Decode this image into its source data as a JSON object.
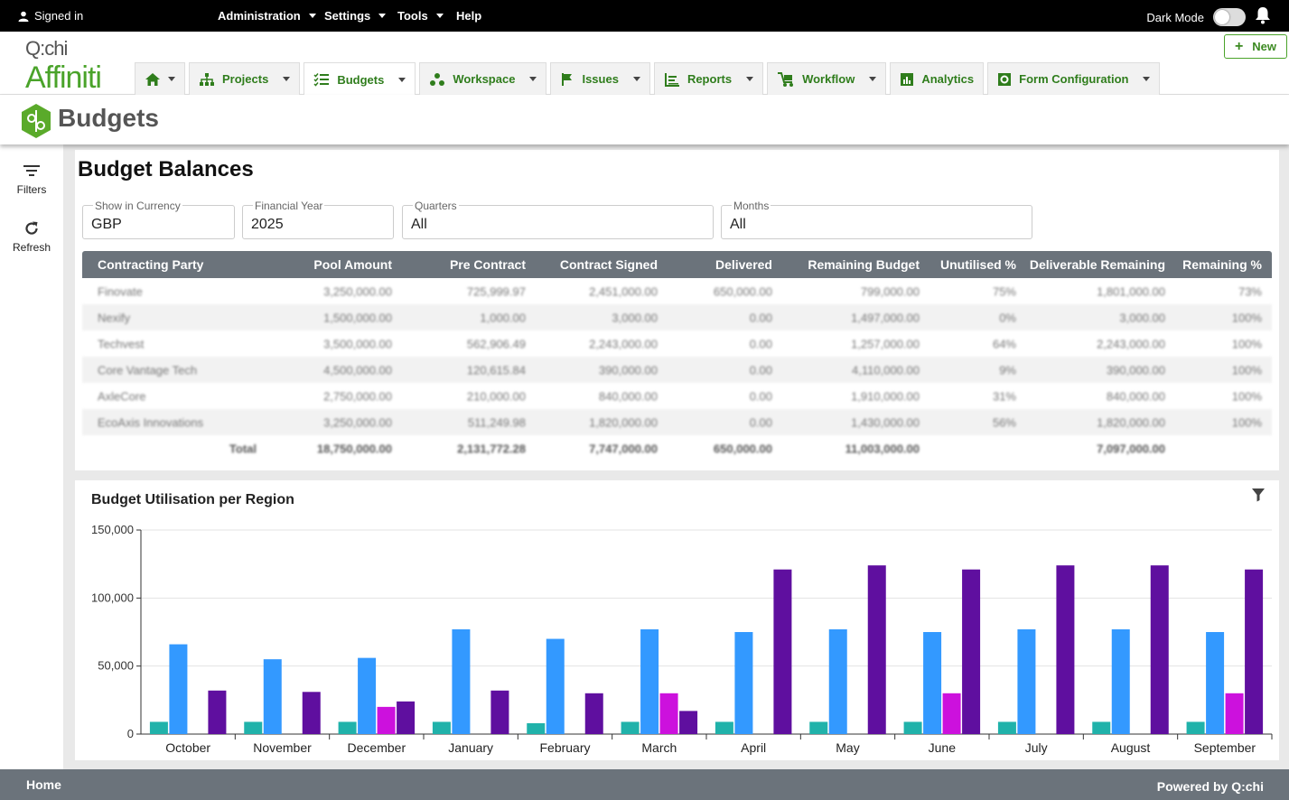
{
  "topbar": {
    "signed_in": "Signed in",
    "menus": [
      "Administration",
      "Settings",
      "Tools",
      "Help"
    ],
    "dark_mode": "Dark Mode"
  },
  "logo": {
    "top": "Q:chi",
    "bottom": "Affiniti"
  },
  "new_button": "New",
  "tabs": [
    {
      "label": "",
      "icon": "home-icon"
    },
    {
      "label": "Projects",
      "icon": "org-chart-icon"
    },
    {
      "label": "Budgets",
      "icon": "list-check-icon"
    },
    {
      "label": "Workspace",
      "icon": "dots-cluster-icon"
    },
    {
      "label": "Issues",
      "icon": "flag-icon"
    },
    {
      "label": "Reports",
      "icon": "report-icon"
    },
    {
      "label": "Workflow",
      "icon": "workflow-icon"
    },
    {
      "label": "Analytics",
      "icon": "analytics-icon"
    },
    {
      "label": "Form Configuration",
      "icon": "form-config-icon"
    }
  ],
  "page_title": "Budgets",
  "side": {
    "filters": "Filters",
    "refresh": "Refresh"
  },
  "balances": {
    "title": "Budget Balances",
    "fields": {
      "currency": {
        "label": "Show in Currency",
        "value": "GBP"
      },
      "year": {
        "label": "Financial Year",
        "value": "2025"
      },
      "quarters": {
        "label": "Quarters",
        "value": "All"
      },
      "months": {
        "label": "Months",
        "value": "All"
      }
    },
    "columns": [
      "Contracting Party",
      "Pool Amount",
      "Pre Contract",
      "Contract Signed",
      "Delivered",
      "Remaining Budget",
      "Unutilised %",
      "Deliverable Remaining",
      "Remaining %"
    ],
    "rows": [
      [
        "Finovate",
        "3,250,000.00",
        "725,999.97",
        "2,451,000.00",
        "650,000.00",
        "799,000.00",
        "75%",
        "1,801,000.00",
        "73%"
      ],
      [
        "Nexify",
        "1,500,000.00",
        "1,000.00",
        "3,000.00",
        "0.00",
        "1,497,000.00",
        "0%",
        "3,000.00",
        "100%"
      ],
      [
        "Techvest",
        "3,500,000.00",
        "562,906.49",
        "2,243,000.00",
        "0.00",
        "1,257,000.00",
        "64%",
        "2,243,000.00",
        "100%"
      ],
      [
        "Core Vantage Tech",
        "4,500,000.00",
        "120,615.84",
        "390,000.00",
        "0.00",
        "4,110,000.00",
        "9%",
        "390,000.00",
        "100%"
      ],
      [
        "AxleCore",
        "2,750,000.00",
        "210,000.00",
        "840,000.00",
        "0.00",
        "1,910,000.00",
        "31%",
        "840,000.00",
        "100%"
      ],
      [
        "EcoAxis Innovations",
        "3,250,000.00",
        "511,249.98",
        "1,820,000.00",
        "0.00",
        "1,430,000.00",
        "56%",
        "1,820,000.00",
        "100%"
      ]
    ],
    "total": [
      "Total",
      "18,750,000.00",
      "2,131,772.28",
      "7,747,000.00",
      "650,000.00",
      "11,003,000.00",
      "",
      "7,097,000.00",
      ""
    ]
  },
  "chart_title": "Budget Utilisation per Region",
  "chart_data": {
    "type": "bar",
    "title": "Budget Utilisation per Region",
    "categories": [
      "October",
      "November",
      "December",
      "January",
      "February",
      "March",
      "April",
      "May",
      "June",
      "July",
      "August",
      "September"
    ],
    "ylim": [
      0,
      150000
    ],
    "yticks": [
      "0",
      "50,000",
      "100,000",
      "150,000"
    ],
    "ytick_values": [
      0,
      50000,
      100000,
      150000
    ],
    "series": [
      {
        "color": "#20b2aa",
        "values": [
          9000,
          9000,
          9000,
          9000,
          8000,
          9000,
          9000,
          9000,
          9000,
          9000,
          9000,
          9000
        ]
      },
      {
        "color": "#3399ff",
        "values": [
          66000,
          55000,
          56000,
          77000,
          70000,
          77000,
          75000,
          77000,
          75000,
          77000,
          77000,
          75000
        ]
      },
      {
        "color": "#cc11dd",
        "values": [
          0,
          0,
          20000,
          0,
          0,
          30000,
          0,
          0,
          30000,
          0,
          0,
          30000
        ]
      },
      {
        "color": "#5f0f9f",
        "values": [
          32000,
          31000,
          24000,
          32000,
          30000,
          17000,
          121000,
          124000,
          121000,
          124000,
          124000,
          121000
        ]
      }
    ],
    "grid": true
  },
  "footer": {
    "home": "Home",
    "powered": "Powered by Q:chi"
  }
}
